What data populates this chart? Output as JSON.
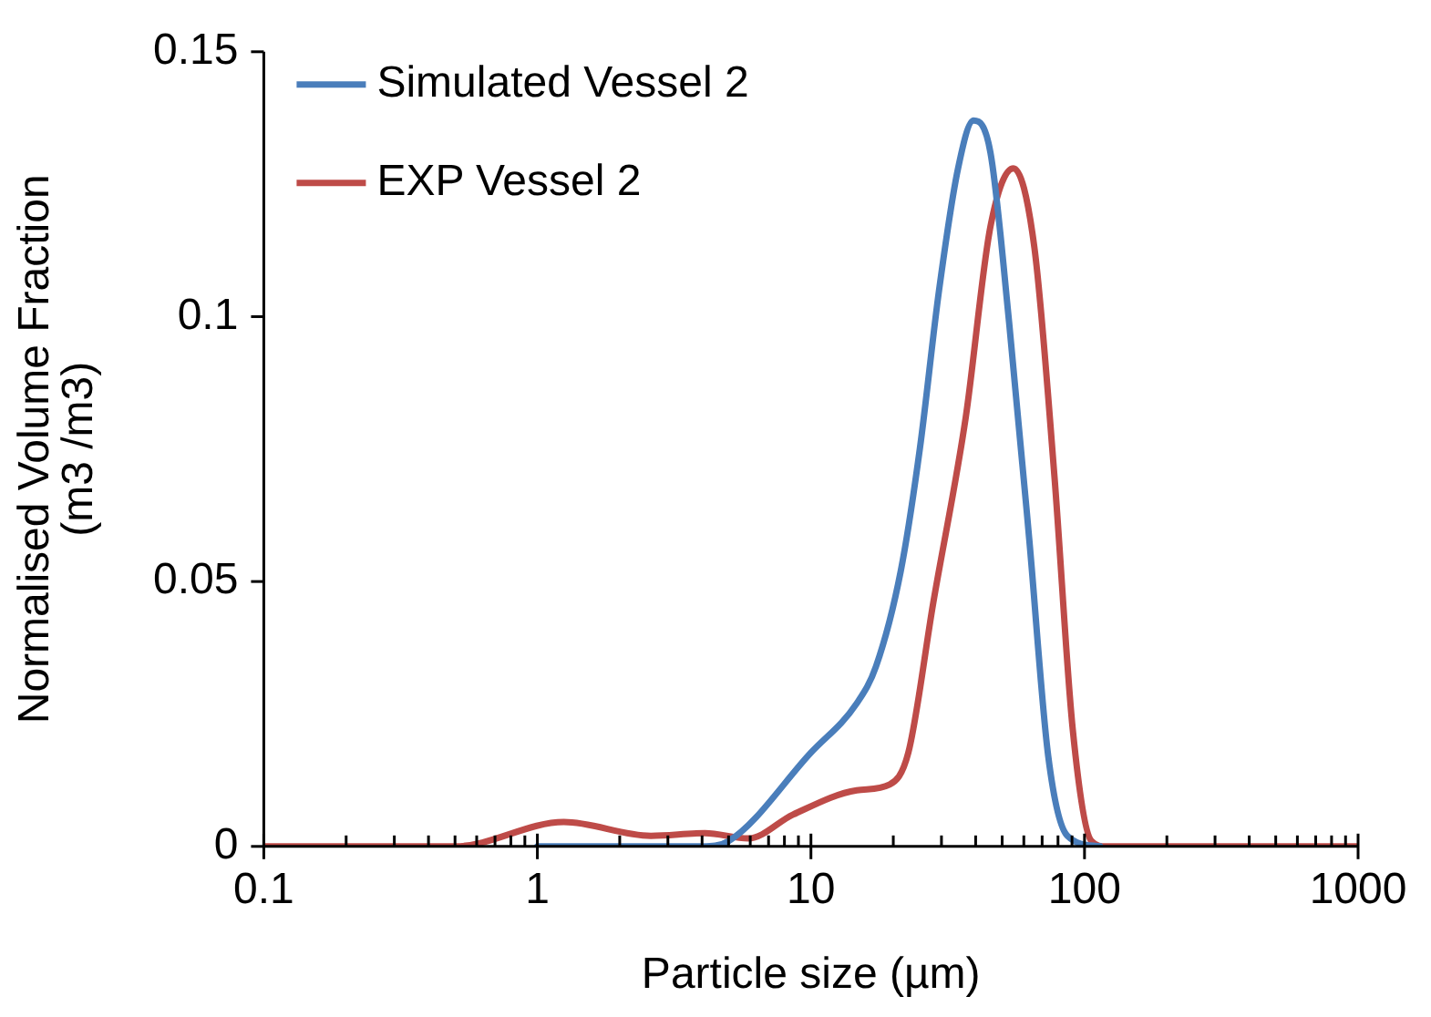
{
  "chart_data": {
    "type": "line",
    "xlabel": "Particle size (µm)",
    "ylabel": "Normalised Volume Fraction\n(m3 /m3)",
    "log": "x",
    "xlim": [
      0.1,
      1000
    ],
    "xticks": [
      0.1,
      1,
      10,
      100,
      1000
    ],
    "ylim": [
      0,
      0.15
    ],
    "yticks": [
      0,
      0.05,
      0.1,
      0.15
    ],
    "grid": false,
    "legend": "top left",
    "marker": "none",
    "line_style": "solid",
    "series": [
      {
        "name": "Simulated Vessel 2",
        "color": "#4a7ebb",
        "x": [
          1,
          4,
          5,
          10,
          14.7,
          17.3,
          21.3,
          25,
          29.4,
          34.5,
          39.3,
          45.3,
          53,
          62.8,
          73.7,
          86.6,
          114
        ],
        "values": [
          0,
          0,
          0.001,
          0.0177,
          0.027,
          0.034,
          0.052,
          0.075,
          0.105,
          0.128,
          0.137,
          0.131,
          0.099,
          0.058,
          0.017,
          0.002,
          0
        ]
      },
      {
        "name": "EXP Vessel 2",
        "color": "#be4b48",
        "x": [
          0.1,
          0.5,
          1.25,
          2.6,
          4.1,
          5.9,
          8.6,
          14.7,
          19.4,
          22.7,
          28,
          36.8,
          45.3,
          55,
          65.6,
          77.6,
          90.6,
          106,
          120,
          1000
        ],
        "values": [
          0,
          0,
          0.0046,
          0.002,
          0.0025,
          0.0015,
          0.006,
          0.0106,
          0.0117,
          0.0177,
          0.046,
          0.081,
          0.117,
          0.128,
          0.113,
          0.07,
          0.022,
          0.001,
          0,
          0
        ]
      }
    ]
  }
}
